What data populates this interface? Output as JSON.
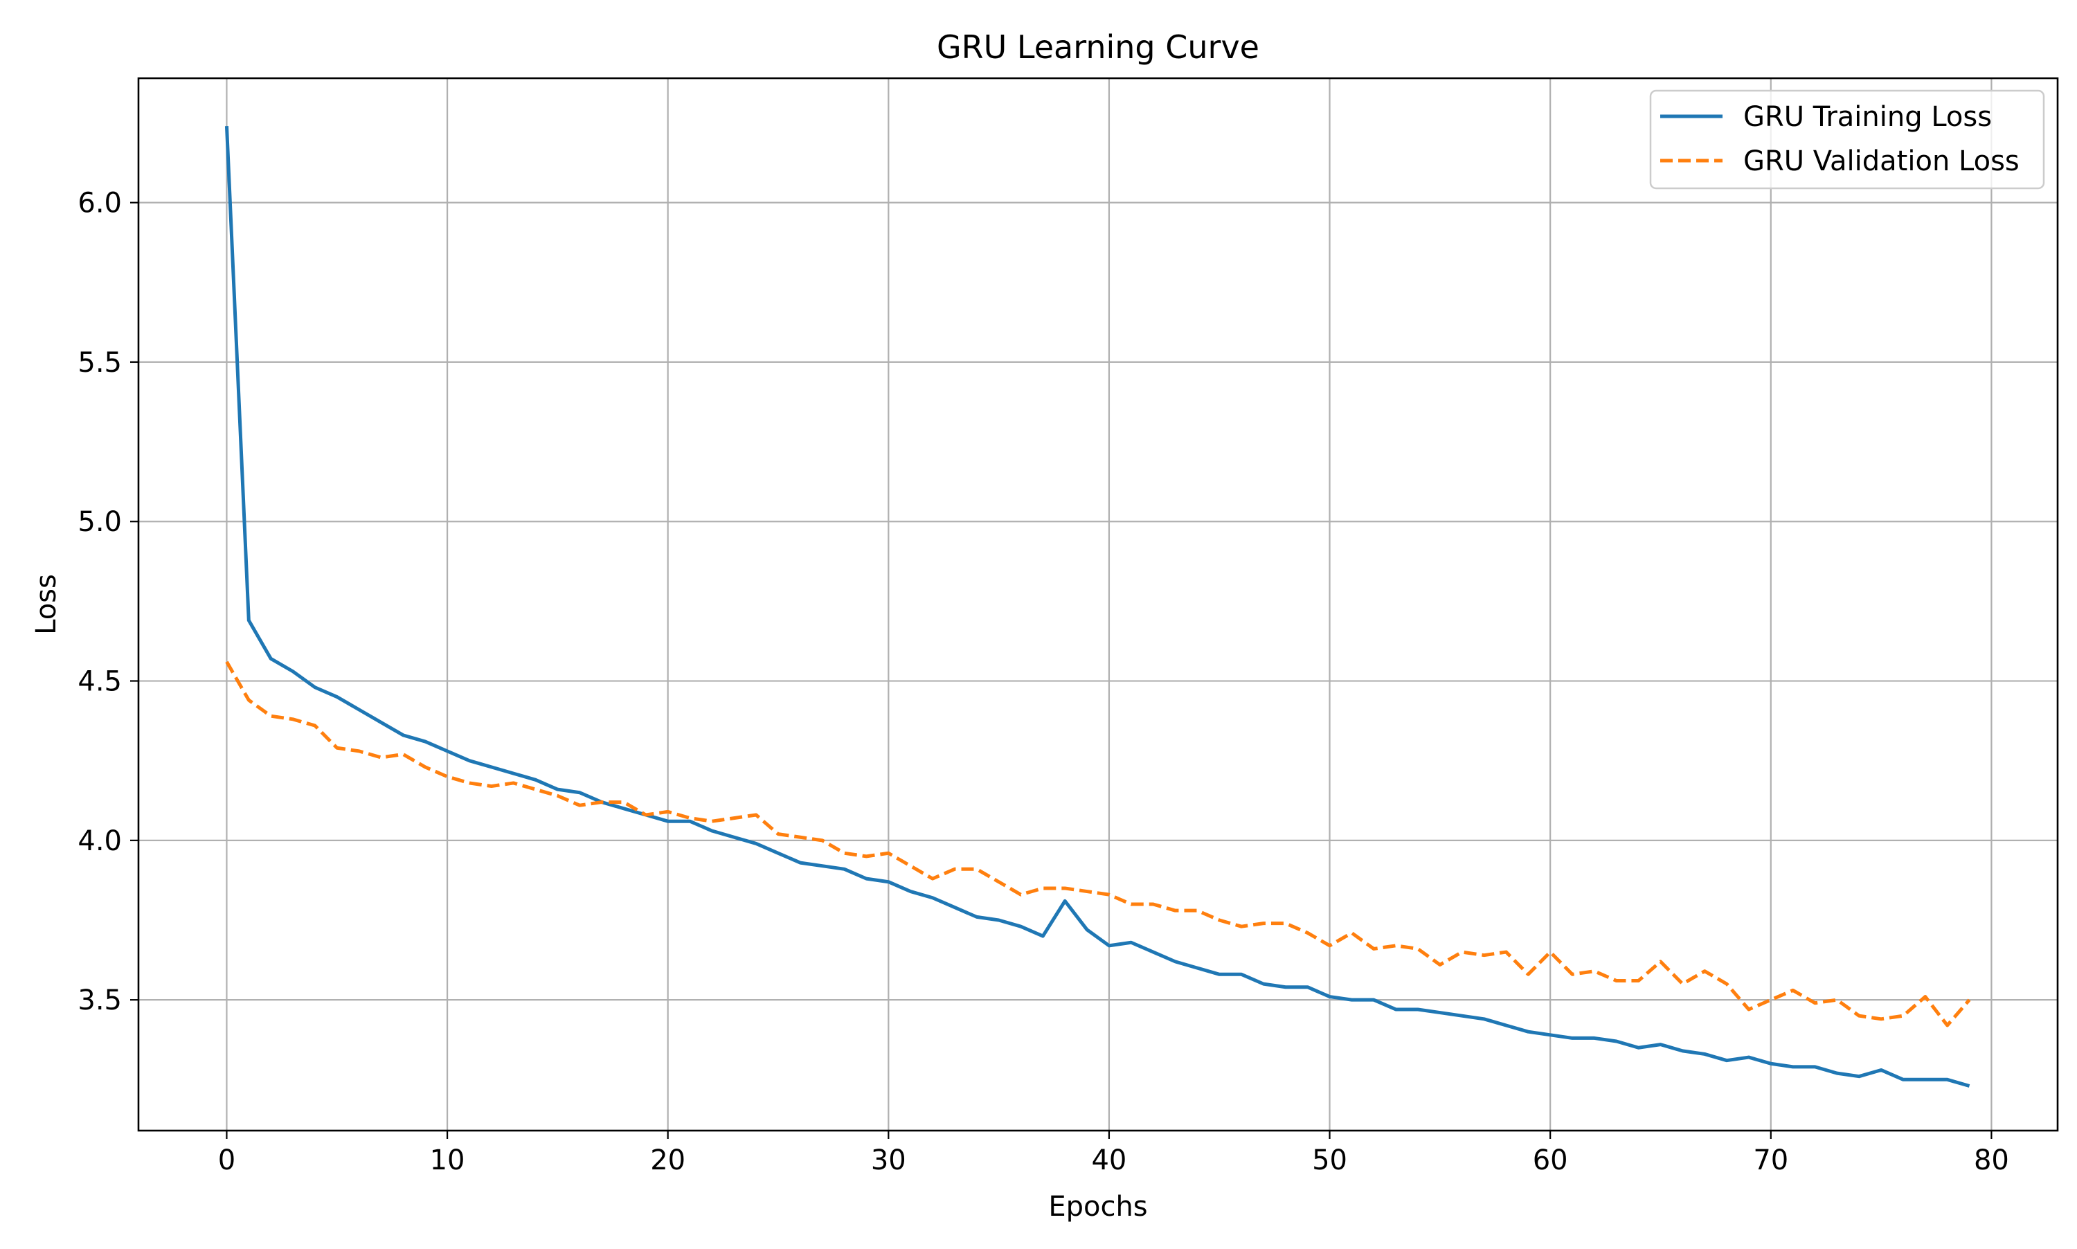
{
  "chart_data": {
    "type": "line",
    "title": "GRU Learning Curve",
    "xlabel": "Epochs",
    "ylabel": "Loss",
    "xlim": [
      -4,
      83
    ],
    "ylim": [
      3.09,
      6.39
    ],
    "xticks": [
      0,
      10,
      20,
      30,
      40,
      50,
      60,
      70,
      80
    ],
    "xtick_labels": [
      "0",
      "10",
      "20",
      "30",
      "40",
      "50",
      "60",
      "70",
      "80"
    ],
    "yticks": [
      3.5,
      4.0,
      4.5,
      5.0,
      5.5,
      6.0
    ],
    "ytick_labels": [
      "3.5",
      "4.0",
      "4.5",
      "5.0",
      "5.5",
      "6.0"
    ],
    "grid": true,
    "legend_position": "top-right",
    "x": [
      0,
      1,
      2,
      3,
      4,
      5,
      6,
      7,
      8,
      9,
      10,
      11,
      12,
      13,
      14,
      15,
      16,
      17,
      18,
      19,
      20,
      21,
      22,
      23,
      24,
      25,
      26,
      27,
      28,
      29,
      30,
      31,
      32,
      33,
      34,
      35,
      36,
      37,
      38,
      39,
      40,
      41,
      42,
      43,
      44,
      45,
      46,
      47,
      48,
      49,
      50,
      51,
      52,
      53,
      54,
      55,
      56,
      57,
      58,
      59,
      60,
      61,
      62,
      63,
      64,
      65,
      66,
      67,
      68,
      69,
      70,
      71,
      72,
      73,
      74,
      75,
      76,
      77,
      78,
      79
    ],
    "series": [
      {
        "name": "GRU Training Loss",
        "color": "#1f77b4",
        "style": "solid",
        "values": [
          6.24,
          4.69,
          4.57,
          4.53,
          4.48,
          4.45,
          4.41,
          4.37,
          4.33,
          4.31,
          4.28,
          4.25,
          4.23,
          4.21,
          4.19,
          4.16,
          4.15,
          4.12,
          4.1,
          4.08,
          4.06,
          4.06,
          4.03,
          4.01,
          3.99,
          3.96,
          3.93,
          3.92,
          3.91,
          3.88,
          3.87,
          3.84,
          3.82,
          3.79,
          3.76,
          3.75,
          3.73,
          3.7,
          3.81,
          3.72,
          3.67,
          3.68,
          3.65,
          3.62,
          3.6,
          3.58,
          3.58,
          3.55,
          3.54,
          3.54,
          3.51,
          3.5,
          3.5,
          3.47,
          3.47,
          3.46,
          3.45,
          3.44,
          3.42,
          3.4,
          3.39,
          3.38,
          3.38,
          3.37,
          3.35,
          3.36,
          3.34,
          3.33,
          3.31,
          3.32,
          3.3,
          3.29,
          3.29,
          3.27,
          3.26,
          3.28,
          3.25,
          3.25,
          3.25,
          3.23
        ]
      },
      {
        "name": "GRU Validation Loss",
        "color": "#ff7f0e",
        "style": "dashed",
        "values": [
          4.56,
          4.44,
          4.39,
          4.38,
          4.36,
          4.29,
          4.28,
          4.26,
          4.27,
          4.23,
          4.2,
          4.18,
          4.17,
          4.18,
          4.16,
          4.14,
          4.11,
          4.12,
          4.12,
          4.08,
          4.09,
          4.07,
          4.06,
          4.07,
          4.08,
          4.02,
          4.01,
          4.0,
          3.96,
          3.95,
          3.96,
          3.92,
          3.88,
          3.91,
          3.91,
          3.87,
          3.83,
          3.85,
          3.85,
          3.84,
          3.83,
          3.8,
          3.8,
          3.78,
          3.78,
          3.75,
          3.73,
          3.74,
          3.74,
          3.71,
          3.67,
          3.71,
          3.66,
          3.67,
          3.66,
          3.61,
          3.65,
          3.64,
          3.65,
          3.58,
          3.65,
          3.58,
          3.59,
          3.56,
          3.56,
          3.62,
          3.55,
          3.59,
          3.55,
          3.47,
          3.5,
          3.53,
          3.49,
          3.5,
          3.45,
          3.44,
          3.45,
          3.51,
          3.42,
          3.5
        ]
      }
    ]
  }
}
